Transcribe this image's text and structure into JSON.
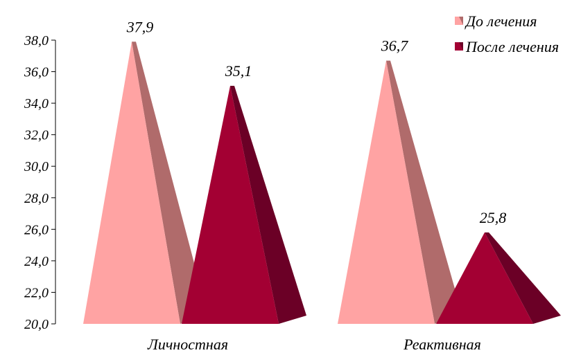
{
  "chart_data": {
    "type": "bar",
    "shape": "pyramid-3d",
    "categories": [
      "Личностная",
      "Реактивная"
    ],
    "series": [
      {
        "name": "До лечения",
        "values": [
          37.9,
          36.7
        ],
        "labels": [
          "37,9",
          "36,7"
        ]
      },
      {
        "name": "После лечения",
        "values": [
          35.1,
          25.8
        ],
        "labels": [
          "35,1",
          "25,8"
        ]
      }
    ],
    "ylim": [
      20.0,
      38.0
    ],
    "yticks": [
      20.0,
      22.0,
      24.0,
      26.0,
      28.0,
      30.0,
      32.0,
      34.0,
      36.0,
      38.0
    ],
    "ytick_labels": [
      "20,0",
      "22,0",
      "24,0",
      "26,0",
      "28,0",
      "30,0",
      "32,0",
      "34,0",
      "36,0",
      "38,0"
    ],
    "grid": false,
    "legend": {
      "position": "top-right"
    },
    "colors": {
      "before_front": "#ffa3a3",
      "before_side": "#b06b6b",
      "after_front": "#a30033",
      "after_side": "#6b0026",
      "after_top": "#7d0a2c"
    }
  }
}
